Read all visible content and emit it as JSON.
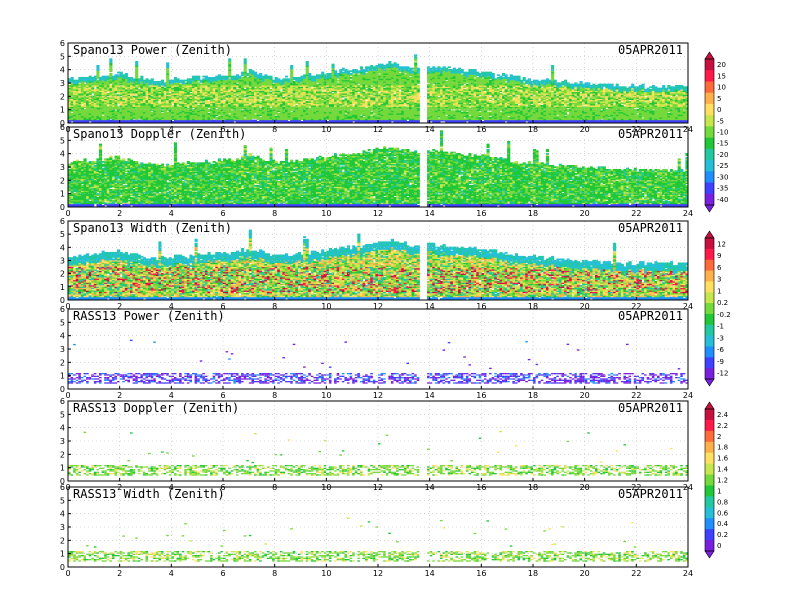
{
  "figure": {
    "colors": {
      "frame": "#000000",
      "grid": "#bdbdbd",
      "palette": [
        "#7a1fe0",
        "#4040ff",
        "#1f8fff",
        "#25c0d8",
        "#22c9a0",
        "#20c838",
        "#74d93a",
        "#c8e64c",
        "#ffe060",
        "#ffb04a",
        "#ff6a3a",
        "#ff1a4a",
        "#c81040"
      ]
    }
  },
  "chart_data": [
    {
      "type": "heatmap",
      "title": "Spano13 Power (Zenith)",
      "date": "05APR2011",
      "x_ticks": [
        "0",
        "2",
        "4",
        "6",
        "8",
        "10",
        "12",
        "14",
        "16",
        "18",
        "20",
        "22",
        "24"
      ],
      "y_ticks": [
        "0",
        "1",
        "2",
        "3",
        "4",
        "5",
        "6"
      ],
      "xlim": [
        0,
        24
      ],
      "ylim": [
        0,
        6
      ],
      "grid": true,
      "pattern": "dense",
      "colorbar": [
        "20",
        "15",
        "10",
        "5",
        "0",
        "-5",
        "-10",
        "-15",
        "-20",
        "-25",
        "-30",
        "-35",
        "-40"
      ],
      "top_height_profile": [
        [
          0.0,
          3.3
        ],
        [
          1.0,
          3.5
        ],
        [
          1.8,
          3.7
        ],
        [
          2.5,
          3.4
        ],
        [
          3.5,
          3.1
        ],
        [
          5.0,
          3.4
        ],
        [
          6.5,
          3.6
        ],
        [
          7.0,
          3.9
        ],
        [
          8.0,
          3.3
        ],
        [
          9.5,
          3.6
        ],
        [
          10.5,
          3.9
        ],
        [
          11.5,
          4.1
        ],
        [
          12.5,
          4.5
        ],
        [
          13.5,
          4.0
        ],
        [
          14.0,
          4.2
        ],
        [
          16.0,
          3.8
        ],
        [
          17.5,
          3.3
        ],
        [
          19.0,
          3.1
        ],
        [
          21.0,
          2.8
        ],
        [
          24.0,
          2.7
        ]
      ],
      "gap_hours": [
        13.5,
        13.8
      ]
    },
    {
      "type": "heatmap",
      "title": "Spano13 Doppler (Zenith)",
      "date": "05APR2011",
      "x_ticks": [
        "0",
        "2",
        "4",
        "6",
        "8",
        "10",
        "12",
        "14",
        "16",
        "18",
        "20",
        "22",
        "24"
      ],
      "y_ticks": [
        "0",
        "1",
        "2",
        "3",
        "4",
        "5",
        "6"
      ],
      "xlim": [
        0,
        24
      ],
      "ylim": [
        0,
        6
      ],
      "grid": true,
      "pattern": "dense",
      "colorbar": null,
      "top_height_profile": [
        [
          0.0,
          3.3
        ],
        [
          1.0,
          3.5
        ],
        [
          1.8,
          3.7
        ],
        [
          2.5,
          3.4
        ],
        [
          3.5,
          3.1
        ],
        [
          5.0,
          3.4
        ],
        [
          6.5,
          3.6
        ],
        [
          7.0,
          3.9
        ],
        [
          8.0,
          3.3
        ],
        [
          9.5,
          3.6
        ],
        [
          10.5,
          3.9
        ],
        [
          11.5,
          4.1
        ],
        [
          12.5,
          4.5
        ],
        [
          13.5,
          4.0
        ],
        [
          14.0,
          4.2
        ],
        [
          16.0,
          3.8
        ],
        [
          17.5,
          3.3
        ],
        [
          19.0,
          3.1
        ],
        [
          21.0,
          2.8
        ],
        [
          24.0,
          2.7
        ]
      ],
      "gap_hours": [
        13.5,
        13.8
      ]
    },
    {
      "type": "heatmap",
      "title": "Spano13 Width (Zenith)",
      "date": "05APR2011",
      "x_ticks": [
        "0",
        "2",
        "4",
        "6",
        "8",
        "10",
        "12",
        "14",
        "16",
        "18",
        "20",
        "22",
        "24"
      ],
      "y_ticks": [
        "0",
        "1",
        "2",
        "3",
        "4",
        "5",
        "6"
      ],
      "xlim": [
        0,
        24
      ],
      "ylim": [
        0,
        6
      ],
      "grid": true,
      "pattern": "dense",
      "colorbar": [
        "12",
        "9",
        "6",
        "3",
        "1",
        "0.2",
        "-0.2",
        "-1",
        "-3",
        "-6",
        "-9",
        "-12"
      ],
      "top_height_profile": [
        [
          0.0,
          3.3
        ],
        [
          1.0,
          3.5
        ],
        [
          1.8,
          3.7
        ],
        [
          2.5,
          3.4
        ],
        [
          3.5,
          3.1
        ],
        [
          5.0,
          3.4
        ],
        [
          6.5,
          3.6
        ],
        [
          7.0,
          3.9
        ],
        [
          8.0,
          3.3
        ],
        [
          9.5,
          3.6
        ],
        [
          10.5,
          3.9
        ],
        [
          11.5,
          4.1
        ],
        [
          12.5,
          4.5
        ],
        [
          13.5,
          4.0
        ],
        [
          14.0,
          4.2
        ],
        [
          16.0,
          3.8
        ],
        [
          17.5,
          3.3
        ],
        [
          19.0,
          3.1
        ],
        [
          21.0,
          2.8
        ],
        [
          24.0,
          2.7
        ]
      ],
      "gap_hours": [
        13.5,
        13.8
      ]
    },
    {
      "type": "heatmap",
      "title": "RASS13 Power (Zenith)",
      "date": "05APR2011",
      "x_ticks": [
        "0",
        "2",
        "4",
        "6",
        "8",
        "10",
        "12",
        "14",
        "16",
        "18",
        "20",
        "22",
        "24"
      ],
      "y_ticks": [
        "0",
        "1",
        "2",
        "3",
        "4",
        "5",
        "6"
      ],
      "xlim": [
        0,
        24
      ],
      "ylim": [
        0,
        6
      ],
      "grid": true,
      "pattern": "sparse",
      "colorbar": null,
      "band_height": [
        0.4,
        1.2
      ],
      "gap_hours": [
        13.5,
        13.8
      ]
    },
    {
      "type": "heatmap",
      "title": "RASS13 Doppler (Zenith)",
      "date": "05APR2011",
      "x_ticks": [
        "0",
        "2",
        "4",
        "6",
        "8",
        "10",
        "12",
        "14",
        "16",
        "18",
        "20",
        "22",
        "24"
      ],
      "y_ticks": [
        "0",
        "1",
        "2",
        "3",
        "4",
        "5",
        "6"
      ],
      "xlim": [
        0,
        24
      ],
      "ylim": [
        0,
        6
      ],
      "grid": true,
      "pattern": "sparse",
      "colorbar": [
        "2.4",
        "2.2",
        "2",
        "1.8",
        "1.6",
        "1.4",
        "1.2",
        "1",
        "0.8",
        "0.6",
        "0.4",
        "0.2",
        "0"
      ],
      "band_height": [
        0.4,
        1.2
      ],
      "gap_hours": [
        13.5,
        13.8
      ]
    },
    {
      "type": "heatmap",
      "title": "RASS13 Width (Zenith)",
      "date": "05APR2011",
      "x_ticks": [
        "0",
        "2",
        "4",
        "6",
        "8",
        "10",
        "12",
        "14",
        "16",
        "18",
        "20",
        "22",
        "24"
      ],
      "y_ticks": [
        "0",
        "1",
        "2",
        "3",
        "4",
        "5",
        "6"
      ],
      "xlim": [
        0,
        24
      ],
      "ylim": [
        0,
        6
      ],
      "grid": true,
      "pattern": "sparse",
      "colorbar": null,
      "band_height": [
        0.4,
        1.2
      ],
      "gap_hours": [
        13.5,
        13.8
      ]
    }
  ]
}
